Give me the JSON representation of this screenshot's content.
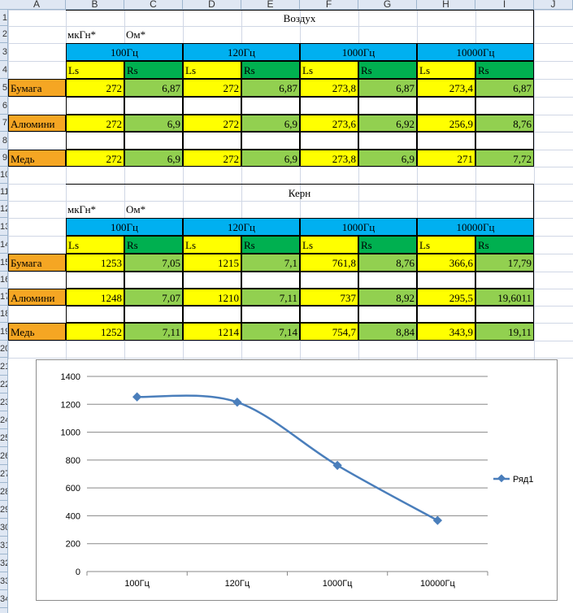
{
  "columns": [
    "A",
    "B",
    "C",
    "D",
    "E",
    "F",
    "G",
    "H",
    "I",
    "J"
  ],
  "rows": [
    "1",
    "2",
    "3",
    "4",
    "5",
    "6",
    "7",
    "8",
    "9",
    "10",
    "11",
    "12",
    "13",
    "14",
    "15",
    "16",
    "17",
    "18",
    "19",
    "20",
    "21",
    "22",
    "23",
    "24",
    "25",
    "26",
    "27",
    "28",
    "29",
    "30",
    "31",
    "32",
    "33",
    "34"
  ],
  "table1": {
    "title": "Воздух",
    "unit_l": "мкГн*",
    "unit_r": "Ом*",
    "freqs": [
      "100Гц",
      "120Гц",
      "1000Гц",
      "10000Гц"
    ],
    "ls": "Ls",
    "rs": "Rs",
    "rows": [
      {
        "label": "Бумага",
        "vals": [
          "272",
          "6,87",
          "272",
          "6,87",
          "273,8",
          "6,87",
          "273,4",
          "6,87"
        ]
      },
      {
        "label": "Алюмини",
        "vals": [
          "272",
          "6,9",
          "272",
          "6,9",
          "273,6",
          "6,92",
          "256,9",
          "8,76"
        ]
      },
      {
        "label": "Медь",
        "vals": [
          "272",
          "6,9",
          "272",
          "6,9",
          "273,8",
          "6,9",
          "271",
          "7,72"
        ]
      }
    ]
  },
  "table2": {
    "title": "Керн",
    "unit_l": "мкГн*",
    "unit_r": "Ом*",
    "freqs": [
      "100Гц",
      "120Гц",
      "1000Гц",
      "10000Гц"
    ],
    "ls": "Ls",
    "rs": "Rs",
    "rows": [
      {
        "label": "Бумага",
        "vals": [
          "1253",
          "7,05",
          "1215",
          "7,1",
          "761,8",
          "8,76",
          "366,6",
          "17,79"
        ]
      },
      {
        "label": "Алюмини",
        "vals": [
          "1248",
          "7,07",
          "1210",
          "7,11",
          "737",
          "8,92",
          "295,5",
          "19,6011"
        ]
      },
      {
        "label": "Медь",
        "vals": [
          "1252",
          "7,11",
          "1214",
          "7,14",
          "754,7",
          "8,84",
          "343,9",
          "19,11"
        ]
      }
    ]
  },
  "colors": {
    "orange": "#f5a623",
    "yellow": "#ffff00",
    "green": "#92d050",
    "darkgreen": "#00b050",
    "blue": "#00b0f0",
    "series": "#4a7ebb"
  },
  "chart_data": {
    "type": "line",
    "categories": [
      "100Гц",
      "120Гц",
      "1000Гц",
      "10000Гц"
    ],
    "series": [
      {
        "name": "Ряд1",
        "values": [
          1253,
          1215,
          761.8,
          366.6
        ]
      }
    ],
    "ylim": [
      0,
      1400
    ],
    "yticks": [
      "0",
      "200",
      "400",
      "600",
      "800",
      "1000",
      "1200",
      "1400"
    ],
    "grid": true,
    "legend": "right"
  }
}
